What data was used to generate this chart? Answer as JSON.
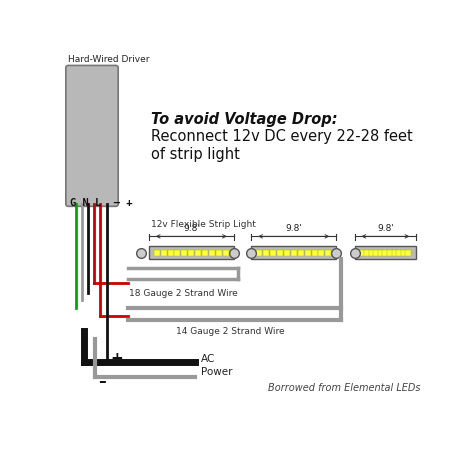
{
  "bg_color": "#ffffff",
  "title_italic": "To avoid Voltage Drop:",
  "title_main": "Reconnect 12v DC every 22-28 feet\nof strip light",
  "driver_label": "Hard-Wired Driver",
  "driver_terminals": "G N L  – +",
  "strip_label": "12v Flexible Strip Light",
  "wire_label_18": "18 Gauge 2 Strand Wire",
  "wire_label_14": "14 Gauge 2 Strand Wire",
  "ac_plus": "+",
  "ac_minus": "–",
  "ac_label": "AC\nPower",
  "credit": "Borrowed from Elemental LEDs",
  "led_color": "#ffff44",
  "strip_bg": "#bbbbbb",
  "wire_gray": "#999999",
  "wire_red": "#cc0000",
  "wire_black": "#111111",
  "wire_green": "#00aa00",
  "box_color": "#b8b8b8",
  "box_edge": "#777777"
}
